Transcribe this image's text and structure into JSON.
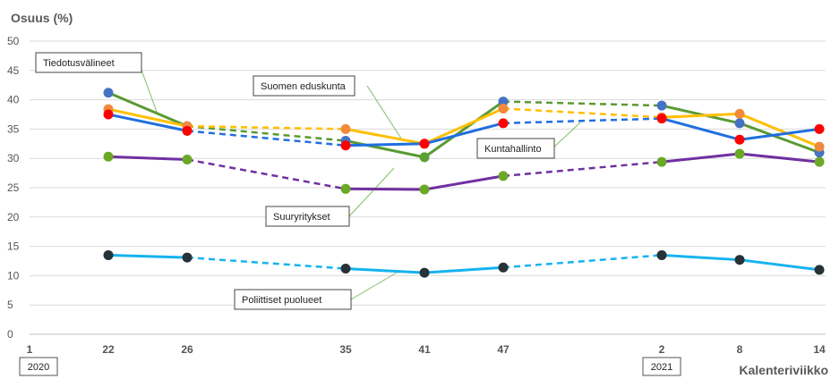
{
  "chart_data": {
    "type": "line",
    "ylabel": "Osuus (%)",
    "xlabel": "Kalenteriviikko",
    "ylim": [
      0,
      50
    ],
    "y_ticks": [
      0,
      5,
      10,
      15,
      20,
      25,
      30,
      35,
      40,
      45,
      50
    ],
    "grid": true,
    "x_ticks": [
      "1",
      "22",
      "26",
      "35",
      "41",
      "47",
      "2",
      "8",
      "14"
    ],
    "year_labels": [
      "2020",
      "2021"
    ],
    "series": [
      {
        "name": "Tiedotusvälineet",
        "color": "#5a9a32",
        "marker": "#5aa032",
        "points": [
          {
            "week": "22",
            "value": 41.2
          },
          {
            "week": "26",
            "value": 35.5
          },
          {
            "week": "35",
            "value": 33.0
          },
          {
            "week": "41",
            "value": 30.2
          },
          {
            "week": "47",
            "value": 39.7
          },
          {
            "week": "2",
            "value": 39.0
          },
          {
            "week": "8",
            "value": 36.0
          },
          {
            "week": "14",
            "value": 31.0
          }
        ],
        "dashed_after": [
          "26",
          "47"
        ]
      },
      {
        "name": "Suomen eduskunta",
        "color": "#ffbf00",
        "marker": "#f08a3c",
        "points": [
          {
            "week": "22",
            "value": 38.4
          },
          {
            "week": "26",
            "value": 35.5
          },
          {
            "week": "35",
            "value": 35.0
          },
          {
            "week": "41",
            "value": 32.5
          },
          {
            "week": "47",
            "value": 38.5
          },
          {
            "week": "2",
            "value": 37.0
          },
          {
            "week": "8",
            "value": 37.6
          },
          {
            "week": "14",
            "value": 32.0
          }
        ],
        "dashed_after": [
          "26",
          "47"
        ]
      },
      {
        "name": "Kuntahallinto",
        "color": "#1f6fe0",
        "marker": "#ff0000",
        "points": [
          {
            "week": "22",
            "value": 37.5
          },
          {
            "week": "26",
            "value": 34.7
          },
          {
            "week": "35",
            "value": 32.2
          },
          {
            "week": "41",
            "value": 32.5
          },
          {
            "week": "47",
            "value": 36.0
          },
          {
            "week": "2",
            "value": 36.8
          },
          {
            "week": "8",
            "value": 33.2
          },
          {
            "week": "14",
            "value": 35.0
          }
        ],
        "dashed_after": [
          "26",
          "47"
        ]
      },
      {
        "name": "Suuryritykset",
        "color": "#7030a0",
        "marker": "#6aa825",
        "points": [
          {
            "week": "22",
            "value": 30.3
          },
          {
            "week": "26",
            "value": 29.8
          },
          {
            "week": "35",
            "value": 24.8
          },
          {
            "week": "41",
            "value": 24.7
          },
          {
            "week": "47",
            "value": 27.0
          },
          {
            "week": "2",
            "value": 29.4
          },
          {
            "week": "8",
            "value": 30.8
          },
          {
            "week": "14",
            "value": 29.4
          }
        ],
        "dashed_after": [
          "26",
          "47"
        ]
      },
      {
        "name": "Poliittiset puolueet",
        "color": "#16b3ee",
        "marker": "#263238",
        "points": [
          {
            "week": "22",
            "value": 13.5
          },
          {
            "week": "26",
            "value": 13.1
          },
          {
            "week": "35",
            "value": 11.2
          },
          {
            "week": "41",
            "value": 10.5
          },
          {
            "week": "47",
            "value": 11.4
          },
          {
            "week": "2",
            "value": 13.5
          },
          {
            "week": "8",
            "value": 12.7
          },
          {
            "week": "14",
            "value": 11.0
          }
        ],
        "dashed_after": [
          "26",
          "47"
        ]
      }
    ]
  }
}
